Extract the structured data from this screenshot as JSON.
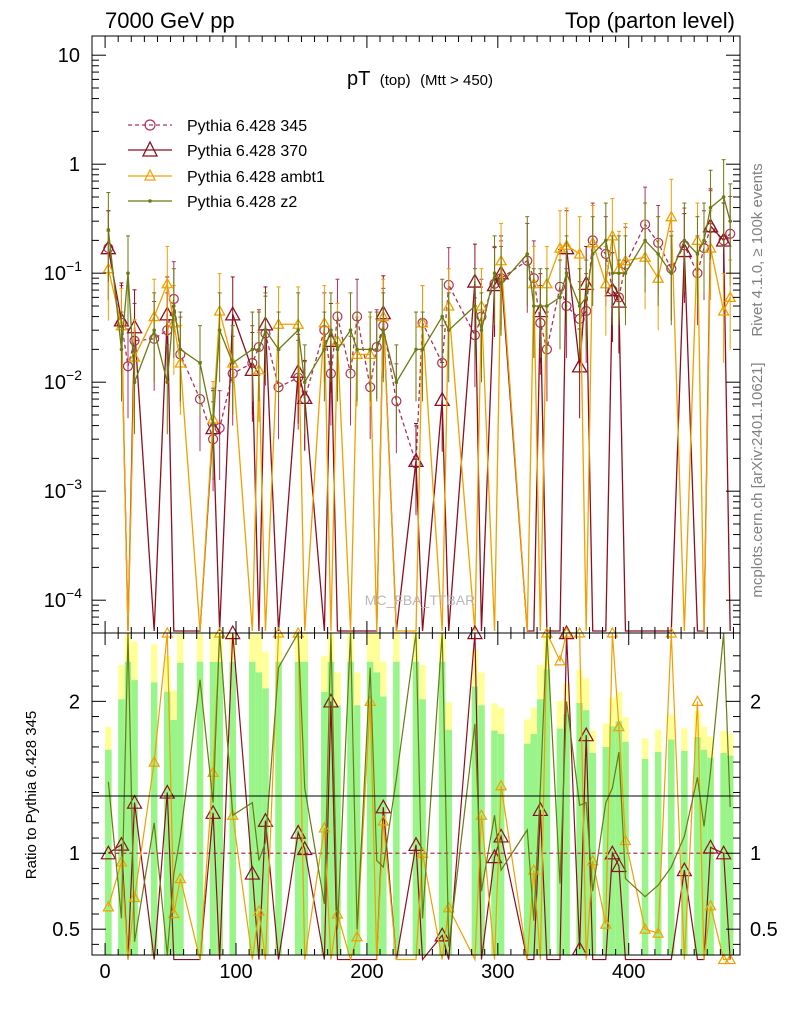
{
  "header": {
    "left": "7000 GeV pp",
    "right": "Top (parton level)",
    "side_upper": "Rivet 4.1.0, ≥ 100k events",
    "side_lower": "mcplots.cern.ch [arXiv:2401.10621]",
    "watermark": "MC_FBA_TTBAR"
  },
  "chart_data": {
    "type": "line",
    "title": "pT",
    "title_sub": "(top)",
    "title_cut": "(Mtt > 450)",
    "xlabel": "",
    "ylabel": "",
    "ratio_ylabel": "Ratio to Pythia 6.428 345",
    "xlim": [
      -10,
      485
    ],
    "ylim": [
      5e-05,
      15
    ],
    "yscale": "log",
    "ratio_ylim": [
      0.33,
      2.45
    ],
    "x_ticks": [
      0,
      100,
      200,
      300,
      400
    ],
    "y_ticks": [
      {
        "v": 0.0001,
        "label": "10^-4"
      },
      {
        "v": 0.001,
        "label": "10^-3"
      },
      {
        "v": 0.01,
        "label": "10^-2"
      },
      {
        "v": 0.1,
        "label": "10^-1"
      },
      {
        "v": 1,
        "label": "1"
      },
      {
        "v": 10,
        "label": "10"
      }
    ],
    "ratio_ticks": [
      0.5,
      1,
      2
    ],
    "x": [
      2.5,
      12.5,
      17.5,
      22.5,
      37.5,
      47.5,
      52.5,
      57.5,
      72.5,
      82.5,
      87.5,
      97.5,
      112.5,
      117.5,
      122.5,
      132.5,
      147.5,
      152.5,
      167.5,
      172.5,
      177.5,
      187.5,
      192.5,
      202.5,
      207.5,
      212.5,
      222.5,
      237.5,
      242.5,
      257.5,
      262.5,
      282.5,
      287.5,
      297.5,
      302.5,
      322.5,
      327.5,
      332.5,
      337.5,
      347.5,
      352.5,
      362.5,
      367.5,
      372.5,
      382.5,
      387.5,
      392.5,
      397.5,
      412.5,
      422.5,
      432.5,
      442.5,
      452.5,
      457.5,
      462.5,
      472.5,
      477.5
    ],
    "series": [
      {
        "name": "Pythia 6.428 345",
        "color": "#b0305a",
        "dash": "4,3",
        "marker": "circle",
        "values": [
          0.17,
          0.035,
          0.014,
          0.024,
          0.025,
          0.03,
          0.058,
          0.018,
          0.007,
          0.003,
          0.0038,
          0.012,
          0.015,
          0.021,
          0.028,
          0.009,
          0.011,
          0.007,
          0.03,
          0.012,
          0.04,
          0.012,
          0.04,
          0.009,
          0.021,
          0.033,
          0.0067,
          0.0018,
          0.035,
          0.015,
          0.078,
          0.027,
          0.04,
          0.08,
          0.09,
          0.13,
          0.09,
          0.035,
          0.02,
          0.075,
          0.05,
          0.038,
          0.045,
          0.2,
          0.15,
          0.07,
          0.06,
          0.12,
          0.28,
          0.19,
          0.11,
          0.18,
          0.1,
          0.17,
          0.26,
          0.2,
          0.23
        ]
      },
      {
        "name": "Pythia 6.428 370",
        "color": "#8b1020",
        "dash": "",
        "marker": "triangle",
        "values": [
          0.17,
          0.037,
          0.0,
          0.032,
          0.0,
          0.042,
          0.0,
          0.0,
          0.0,
          0.0038,
          0.0,
          0.042,
          0.013,
          0.0,
          0.034,
          0.0,
          0.0125,
          0.0072,
          0.0,
          0.024,
          0.0,
          0.0,
          0.0,
          0.0,
          0.0,
          0.043,
          0.0,
          0.0019,
          0.0,
          0.0069,
          0.0,
          0.084,
          0.0,
          0.078,
          0.1,
          0.0,
          0.0,
          0.045,
          0.0,
          0.0,
          0.17,
          0.014,
          0.08,
          0.0,
          0.0,
          0.07,
          0.055,
          0.0,
          0.0,
          0.0,
          0.0,
          0.16,
          0.0,
          0.0,
          0.27,
          0.2,
          0.0
        ]
      },
      {
        "name": "Pythia 6.428 ambt1",
        "color": "#f0a000",
        "dash": "",
        "marker": "triangle",
        "values": [
          0.11,
          0.033,
          0.0,
          0.017,
          0.04,
          0.08,
          0.035,
          0.015,
          0.0,
          0.0046,
          0.045,
          0.015,
          0.0,
          0.013,
          0.0,
          0.034,
          0.034,
          0.0,
          0.035,
          0.0,
          0.024,
          0.0,
          0.018,
          0.018,
          0.0,
          0.04,
          0.0,
          0.0,
          0.035,
          0.0,
          0.05,
          0.0,
          0.05,
          0.0,
          0.13,
          0.0,
          0.08,
          0.0,
          0.08,
          0.17,
          0.18,
          0.15,
          0.0,
          0.19,
          0.08,
          0.22,
          0.11,
          0.13,
          0.14,
          0.09,
          0.33,
          0.0,
          0.2,
          0.0,
          0.17,
          0.045,
          0.06
        ]
      },
      {
        "name": "Pythia 6.428 z2",
        "color": "#6b7a12",
        "dash": "",
        "marker": "dot",
        "values": [
          0.25,
          0.02,
          0.1,
          0.01,
          0.03,
          0.01,
          0.05,
          0.02,
          0.015,
          0.004,
          0.03,
          0.015,
          0.02,
          0.02,
          0.03,
          0.02,
          0.03,
          0.01,
          0.02,
          0.03,
          0.02,
          0.03,
          0.02,
          0.02,
          0.02,
          0.03,
          0.01,
          0.02,
          0.02,
          0.04,
          0.03,
          0.05,
          0.03,
          0.1,
          0.08,
          0.15,
          0.05,
          0.05,
          0.05,
          0.06,
          0.1,
          0.05,
          0.06,
          0.15,
          0.2,
          0.1,
          0.1,
          0.1,
          0.2,
          0.15,
          0.1,
          0.2,
          0.15,
          0.2,
          0.4,
          0.5,
          0.3
        ]
      }
    ]
  }
}
